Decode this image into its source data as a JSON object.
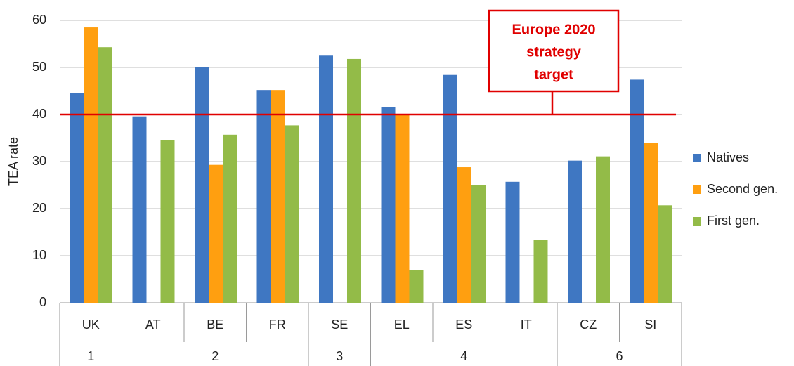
{
  "chart_data": {
    "type": "bar",
    "y_label": "TEA rate",
    "categories": [
      "UK",
      "AT",
      "BE",
      "FR",
      "SE",
      "EL",
      "ES",
      "IT",
      "CZ",
      "SI"
    ],
    "groups": [
      "1",
      "2",
      null,
      null,
      "3",
      "4",
      null,
      null,
      "6",
      null
    ],
    "series": [
      {
        "name": "Natives",
        "color": "#3f77c2",
        "values": [
          44.5,
          39.6,
          50,
          45.2,
          52.5,
          41.5,
          48.4,
          25.7,
          30.2,
          47.4
        ]
      },
      {
        "name": "Second gen.",
        "color": "#ff9f10",
        "values": [
          58.5,
          null,
          29.3,
          45.2,
          null,
          40,
          28.8,
          null,
          null,
          33.9
        ]
      },
      {
        "name": "First gen.",
        "color": "#93bb48",
        "values": [
          54.3,
          34.5,
          35.7,
          37.7,
          51.8,
          7,
          25,
          13.4,
          31.1,
          20.7
        ]
      }
    ],
    "ylim": [
      0,
      60
    ],
    "yticks": [
      0,
      10,
      20,
      30,
      40,
      50,
      60
    ],
    "grid": true,
    "legend": "right",
    "target": {
      "value": 40,
      "color": "#e00000",
      "label": [
        "Europe 2020",
        "strategy",
        "target"
      ]
    }
  }
}
